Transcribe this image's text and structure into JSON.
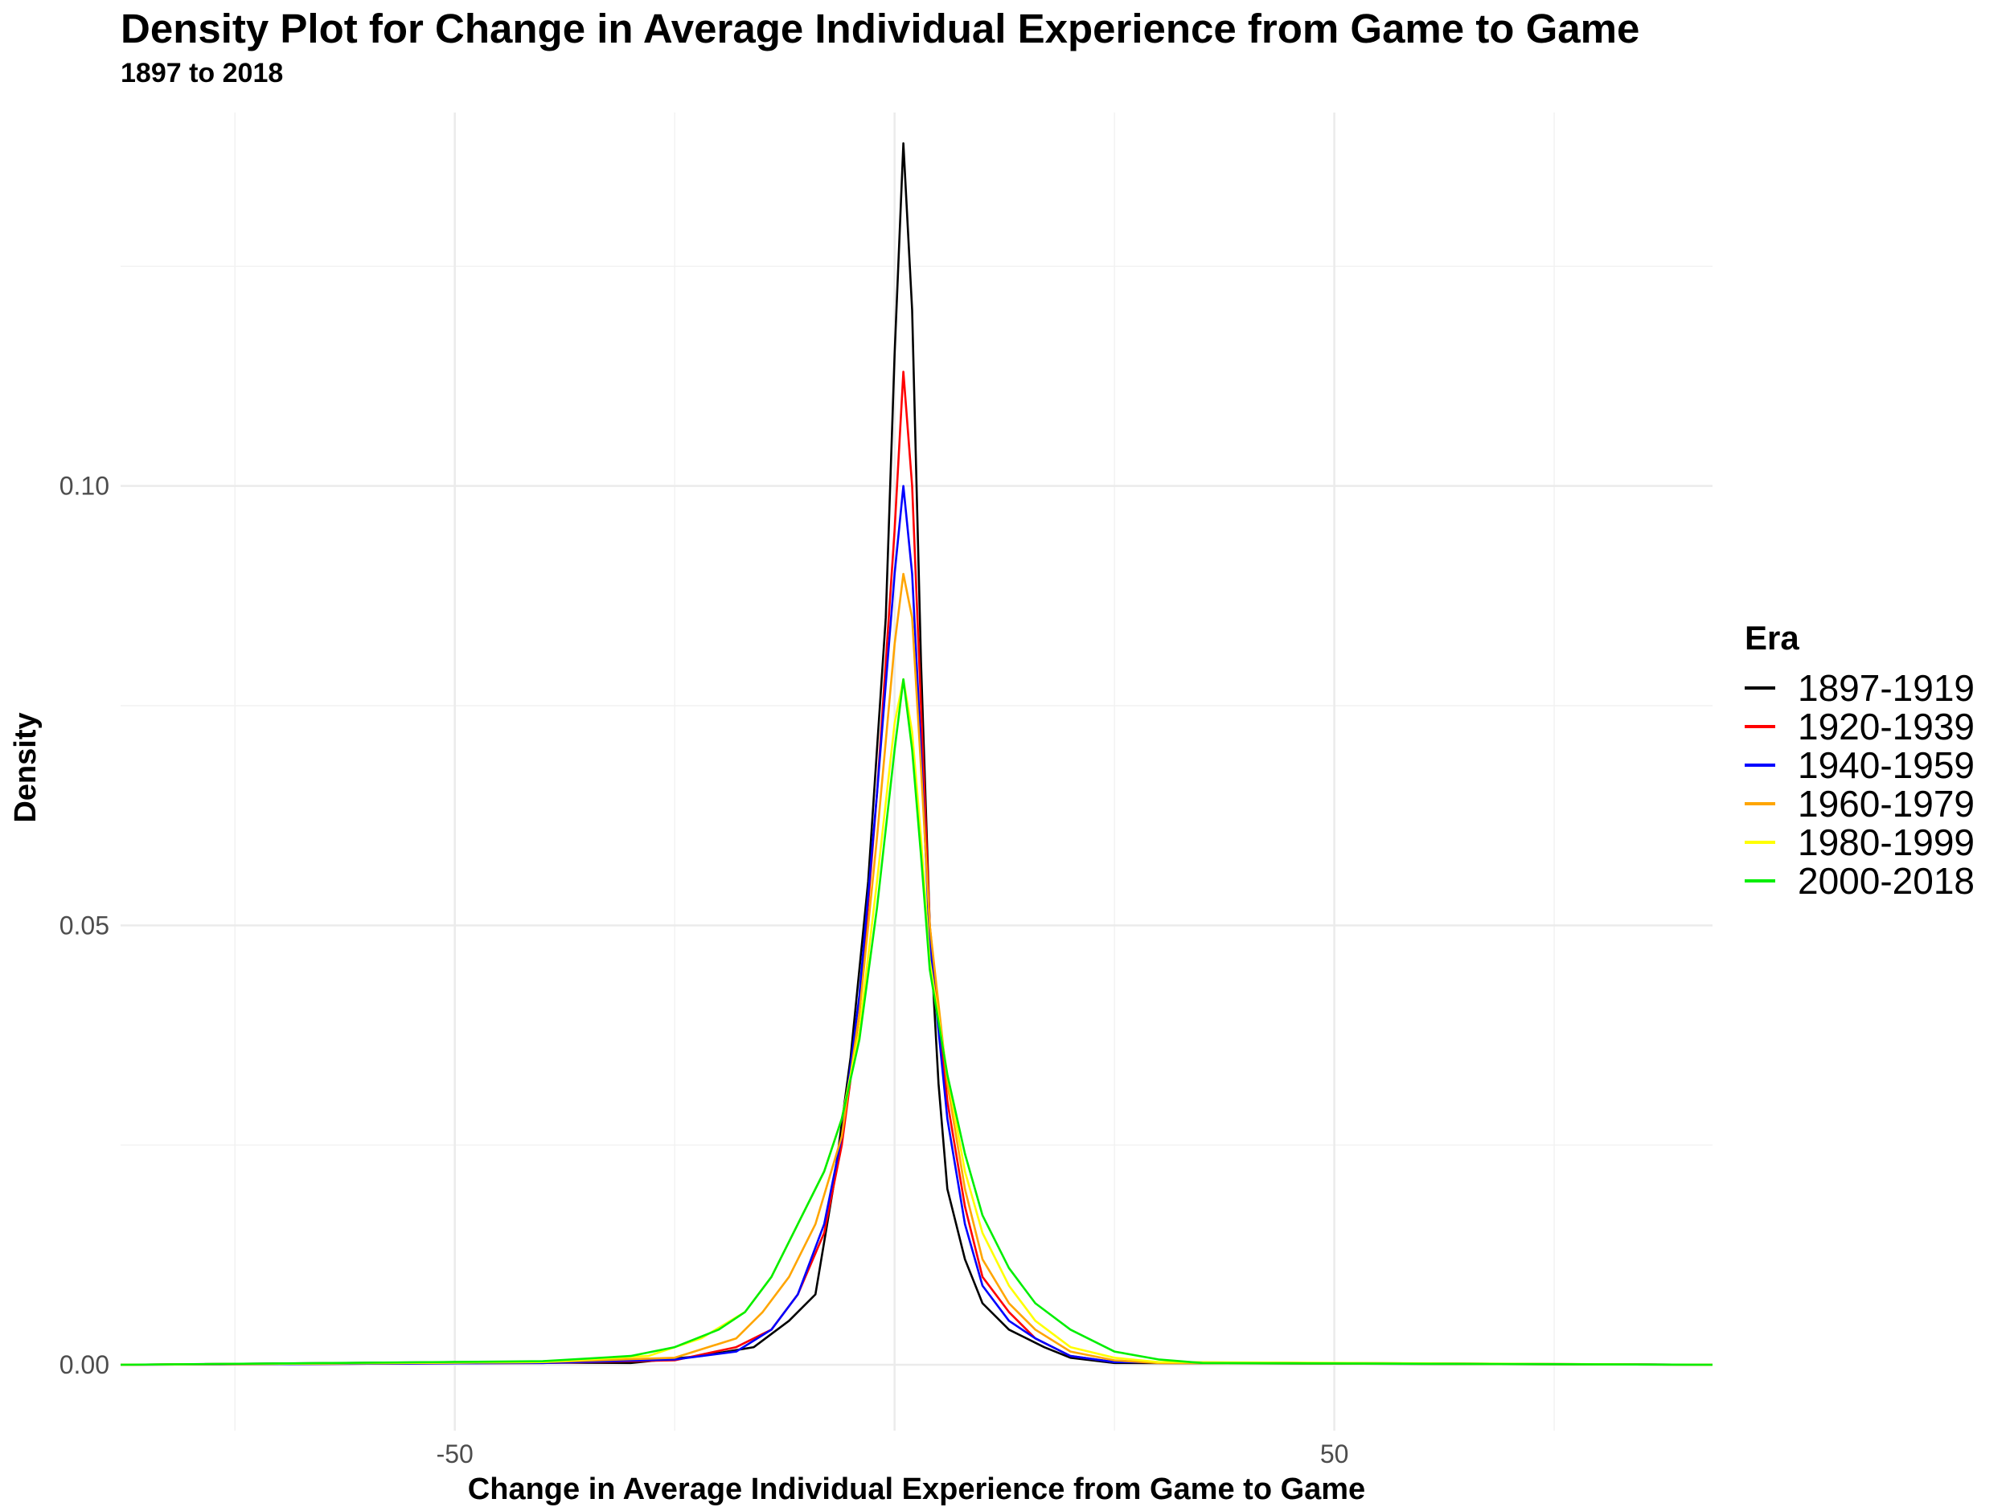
{
  "chart_data": {
    "type": "line",
    "title": "Density Plot for Change in Average Individual Experience from Game to Game",
    "subtitle": "1897 to 2018",
    "xlabel": "Change in Average Individual Experience from Game to Game",
    "ylabel": "Density",
    "xlim": [
      -88,
      93
    ],
    "ylim": [
      -0.0075,
      0.1425
    ],
    "x_ticks": [
      -50,
      0,
      50
    ],
    "x_tick_labels": [
      "-50",
      "",
      "50"
    ],
    "y_ticks": [
      0,
      0.05,
      0.1
    ],
    "y_tick_labels": [
      "0.00",
      "0.05",
      "0.10"
    ],
    "grid": true,
    "legend": {
      "title": "Era",
      "position": "right"
    },
    "series": [
      {
        "name": "1897-1919",
        "color": "#000000",
        "points": [
          [
            -88,
            0
          ],
          [
            -50,
            0.0003
          ],
          [
            -30,
            0.0002
          ],
          [
            -22,
            0.001
          ],
          [
            -16,
            0.002
          ],
          [
            -12,
            0.005
          ],
          [
            -9,
            0.008
          ],
          [
            -7,
            0.02
          ],
          [
            -5,
            0.035
          ],
          [
            -3,
            0.055
          ],
          [
            -1,
            0.085
          ],
          [
            0,
            0.115
          ],
          [
            1,
            0.139
          ],
          [
            2,
            0.12
          ],
          [
            3,
            0.08
          ],
          [
            4,
            0.05
          ],
          [
            5,
            0.032
          ],
          [
            6,
            0.02
          ],
          [
            8,
            0.012
          ],
          [
            10,
            0.007
          ],
          [
            13,
            0.004
          ],
          [
            17,
            0.002
          ],
          [
            20,
            0.0008
          ],
          [
            25,
            0.0002
          ],
          [
            93,
            0
          ]
        ]
      },
      {
        "name": "1920-1939",
        "color": "#ff0000",
        "points": [
          [
            -88,
            0
          ],
          [
            -40,
            0.0002
          ],
          [
            -25,
            0.0005
          ],
          [
            -18,
            0.002
          ],
          [
            -14,
            0.004
          ],
          [
            -11,
            0.008
          ],
          [
            -8,
            0.015
          ],
          [
            -6,
            0.025
          ],
          [
            -4,
            0.04
          ],
          [
            -2,
            0.065
          ],
          [
            0,
            0.095
          ],
          [
            1,
            0.113
          ],
          [
            2,
            0.1
          ],
          [
            3,
            0.075
          ],
          [
            4,
            0.05
          ],
          [
            6,
            0.03
          ],
          [
            8,
            0.018
          ],
          [
            10,
            0.01
          ],
          [
            13,
            0.006
          ],
          [
            16,
            0.003
          ],
          [
            20,
            0.001
          ],
          [
            25,
            0.0003
          ],
          [
            93,
            0
          ]
        ]
      },
      {
        "name": "1940-1959",
        "color": "#0000ff",
        "points": [
          [
            -88,
            0
          ],
          [
            -40,
            0.0002
          ],
          [
            -25,
            0.0006
          ],
          [
            -18,
            0.0015
          ],
          [
            -14,
            0.004
          ],
          [
            -11,
            0.008
          ],
          [
            -8,
            0.016
          ],
          [
            -6,
            0.026
          ],
          [
            -4,
            0.042
          ],
          [
            -2,
            0.065
          ],
          [
            0,
            0.09
          ],
          [
            1,
            0.1
          ],
          [
            2,
            0.09
          ],
          [
            3,
            0.07
          ],
          [
            4,
            0.048
          ],
          [
            6,
            0.028
          ],
          [
            8,
            0.016
          ],
          [
            10,
            0.009
          ],
          [
            13,
            0.005
          ],
          [
            16,
            0.003
          ],
          [
            20,
            0.001
          ],
          [
            25,
            0.0003
          ],
          [
            93,
            0
          ]
        ]
      },
      {
        "name": "1960-1979",
        "color": "#ffa500",
        "points": [
          [
            -88,
            0
          ],
          [
            -40,
            0.0003
          ],
          [
            -25,
            0.0008
          ],
          [
            -18,
            0.003
          ],
          [
            -15,
            0.006
          ],
          [
            -12,
            0.01
          ],
          [
            -9,
            0.016
          ],
          [
            -6,
            0.026
          ],
          [
            -4,
            0.04
          ],
          [
            -2,
            0.06
          ],
          [
            0,
            0.082
          ],
          [
            1,
            0.09
          ],
          [
            2,
            0.085
          ],
          [
            3,
            0.068
          ],
          [
            4,
            0.05
          ],
          [
            6,
            0.032
          ],
          [
            8,
            0.02
          ],
          [
            10,
            0.012
          ],
          [
            13,
            0.007
          ],
          [
            16,
            0.004
          ],
          [
            20,
            0.0015
          ],
          [
            25,
            0.0005
          ],
          [
            30,
            0.0002
          ],
          [
            93,
            0
          ]
        ]
      },
      {
        "name": "1980-1999",
        "color": "#ffff00",
        "points": [
          [
            -88,
            0
          ],
          [
            -40,
            0.0003
          ],
          [
            -28,
            0.001
          ],
          [
            -22,
            0.003
          ],
          [
            -17,
            0.006
          ],
          [
            -14,
            0.01
          ],
          [
            -11,
            0.016
          ],
          [
            -8,
            0.022
          ],
          [
            -6,
            0.028
          ],
          [
            -4,
            0.038
          ],
          [
            -2,
            0.055
          ],
          [
            0,
            0.073
          ],
          [
            1,
            0.078
          ],
          [
            2,
            0.072
          ],
          [
            3,
            0.06
          ],
          [
            4,
            0.046
          ],
          [
            6,
            0.033
          ],
          [
            8,
            0.022
          ],
          [
            10,
            0.015
          ],
          [
            13,
            0.009
          ],
          [
            16,
            0.005
          ],
          [
            20,
            0.002
          ],
          [
            25,
            0.0008
          ],
          [
            30,
            0.0003
          ],
          [
            93,
            0
          ]
        ]
      },
      {
        "name": "2000-2018",
        "color": "#00ee00",
        "points": [
          [
            -88,
            0
          ],
          [
            -40,
            0.0004
          ],
          [
            -30,
            0.001
          ],
          [
            -25,
            0.002
          ],
          [
            -20,
            0.004
          ],
          [
            -17,
            0.006
          ],
          [
            -14,
            0.01
          ],
          [
            -11,
            0.016
          ],
          [
            -8,
            0.022
          ],
          [
            -6,
            0.028
          ],
          [
            -4,
            0.037
          ],
          [
            -2,
            0.052
          ],
          [
            0,
            0.07
          ],
          [
            1,
            0.078
          ],
          [
            2,
            0.07
          ],
          [
            3,
            0.058
          ],
          [
            4,
            0.045
          ],
          [
            6,
            0.033
          ],
          [
            8,
            0.024
          ],
          [
            10,
            0.017
          ],
          [
            13,
            0.011
          ],
          [
            16,
            0.007
          ],
          [
            20,
            0.004
          ],
          [
            25,
            0.0015
          ],
          [
            30,
            0.0006
          ],
          [
            35,
            0.0002
          ],
          [
            93,
            0
          ]
        ]
      }
    ]
  }
}
